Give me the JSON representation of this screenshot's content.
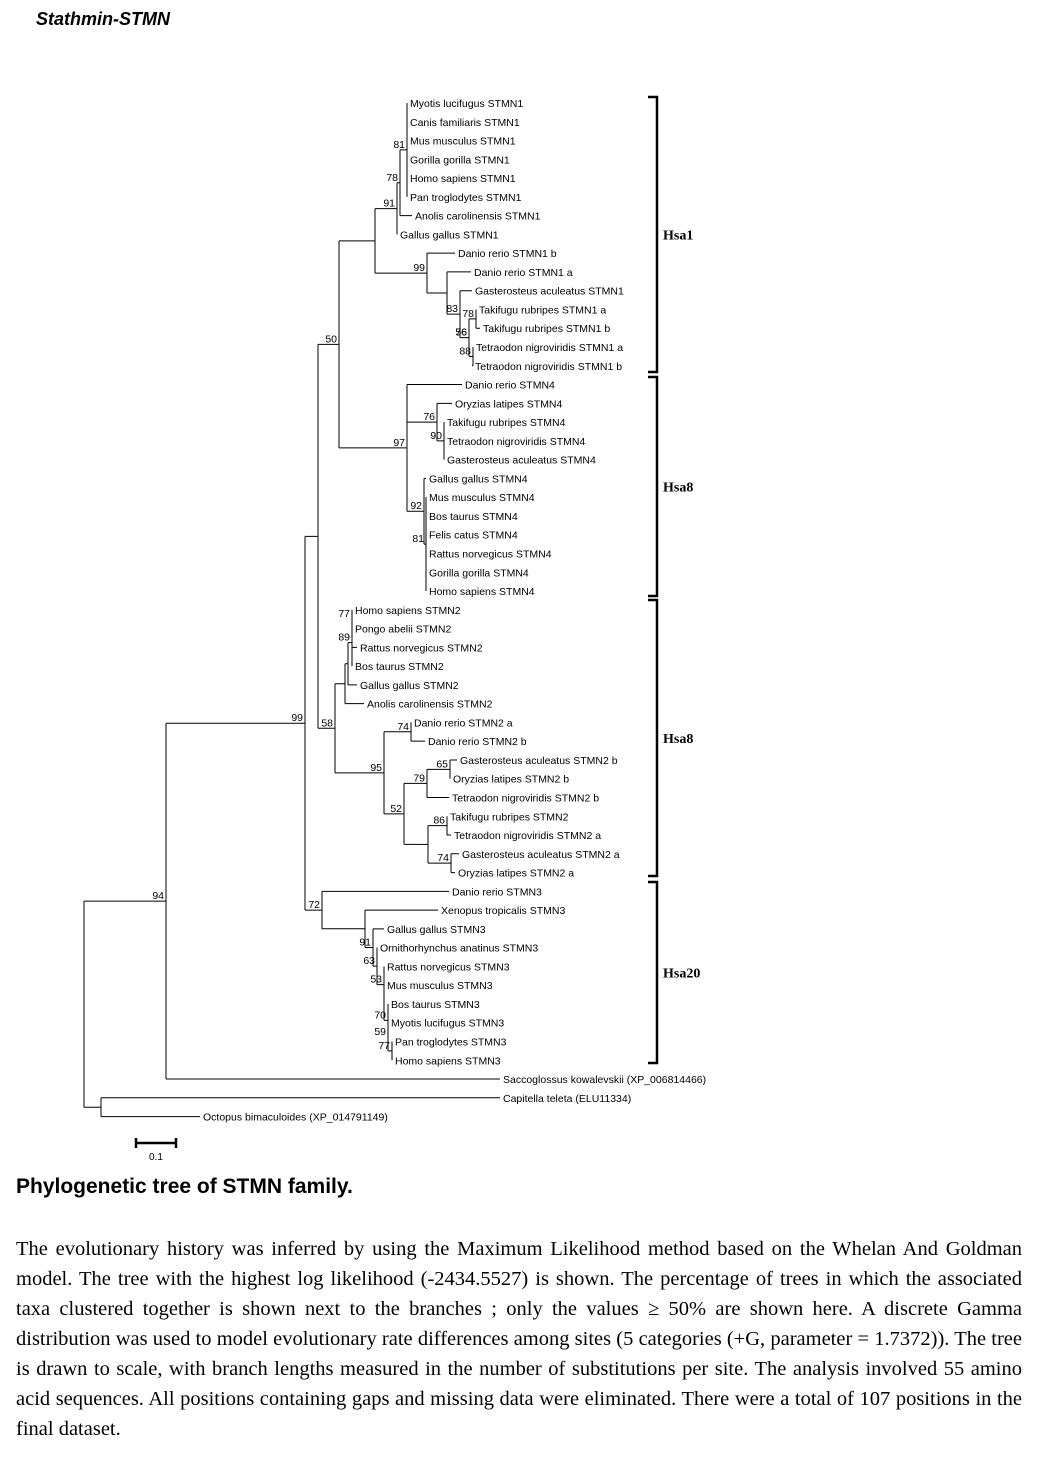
{
  "page_title": "Stathmin-STMN",
  "tree": {
    "taxa": [
      "Myotis lucifugus STMN1",
      "Canis familiaris STMN1",
      "Mus musculus STMN1",
      "Gorilla gorilla STMN1",
      "Homo sapiens STMN1",
      "Pan troglodytes STMN1",
      "Anolis carolinensis STMN1",
      "Gallus gallus STMN1",
      "Danio rerio STMN1 b",
      "Danio rerio STMN1 a",
      "Gasterosteus aculeatus STMN1",
      "Takifugu rubripes STMN1 a",
      "Takifugu rubripes STMN1 b",
      "Tetraodon nigroviridis STMN1 a",
      "Tetraodon nigroviridis STMN1 b",
      "Danio rerio STMN4",
      "Oryzias latipes STMN4",
      "Takifugu rubripes STMN4",
      "Tetraodon nigroviridis STMN4",
      "Gasterosteus aculeatus STMN4",
      "Gallus gallus STMN4",
      "Mus musculus STMN4",
      "Bos taurus STMN4",
      "Felis catus STMN4",
      "Rattus norvegicus STMN4",
      "Gorilla gorilla STMN4",
      "Homo sapiens STMN4",
      "Homo sapiens STMN2",
      "Pongo abelii STMN2",
      "Rattus norvegicus STMN2",
      "Bos taurus STMN2",
      "Gallus gallus STMN2",
      "Anolis carolinensis STMN2",
      "Danio rerio STMN2 a",
      "Danio rerio STMN2 b",
      "Gasterosteus aculeatus STMN2 b",
      "Oryzias latipes STMN2 b",
      "Tetraodon nigroviridis STMN2 b",
      "Takifugu rubripes STMN2",
      "Tetraodon nigroviridis STMN2 a",
      "Gasterosteus aculeatus STMN2 a",
      "Oryzias latipes STMN2 a",
      "Danio rerio STMN3",
      "Xenopus tropicalis STMN3",
      "Gallus gallus STMN3",
      "Ornithorhynchus anatinus STMN3",
      "Rattus norvegicus STMN3",
      "Mus musculus STMN3",
      "Bos taurus STMN3",
      "Myotis lucifugus STMN3",
      "Pan troglodytes STMN3",
      "Homo sapiens STMN3",
      "Saccoglossus kowalevskii (XP_006814466)",
      "Capitella teleta (ELU11334)",
      "Octopus bimaculoides (XP_014791149)"
    ],
    "bootstrap": [
      "81",
      "78",
      "91",
      "99",
      "83",
      "78",
      "56",
      "88",
      "76",
      "50",
      "76",
      "90",
      "97",
      "92",
      "81",
      "77",
      "89",
      "74",
      "65",
      "79",
      "95",
      "86",
      "52",
      "74",
      "58",
      "99",
      "91",
      "63",
      "53",
      "70",
      "59",
      "77",
      "72",
      "94"
    ],
    "clades": [
      "Hsa1",
      "Hsa8",
      "Hsa8",
      "Hsa20"
    ],
    "scale_bar_label": "0.1"
  },
  "caption": {
    "title": "Phylogenetic tree of STMN family.",
    "body": "The evolutionary history was inferred by using the Maximum Likelihood method based on the Whelan And Goldman model. The tree with the highest log likelihood (-2434.5527) is shown. The percentage of trees in which the associated taxa clustered together is shown next to the branches ; only the values ≥ 50% are shown here. A discrete Gamma distribution was used to model evolutionary rate differences among sites (5 categories (+G, parameter = 1.7372)). The tree is drawn to scale, with branch lengths measured in the number of substitutions per site. The analysis involved 55  amino acid sequences. All positions containing gaps and missing data were eliminated. There were a total of 107 positions in the final dataset."
  }
}
